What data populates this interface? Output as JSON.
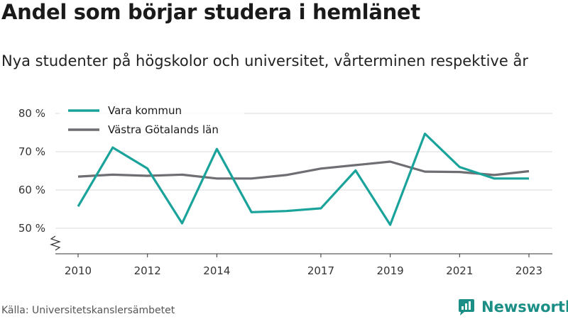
{
  "title": "Andel som börjar studera i hemlänet",
  "subtitle": "Nya studenter på högskolor och universitet, vårterminen respektive år",
  "source": "Källa: Universitetskanslersämbetet",
  "brand": {
    "name": "Newsworthy",
    "icon": "newsworthy-logo-icon",
    "color": "#1b8e86"
  },
  "chart_data": {
    "type": "line",
    "title": "Andel som börjar studera i hemlänet",
    "subtitle": "Nya studenter på högskolor och universitet, vårterminen respektive år",
    "x": [
      2010,
      2011,
      2012,
      2013,
      2014,
      2015,
      2016,
      2017,
      2018,
      2019,
      2020,
      2021,
      2022,
      2023
    ],
    "xticks": [
      2010,
      2012,
      2014,
      2017,
      2019,
      2021,
      2023
    ],
    "xtick_labels": [
      "2010",
      "2012",
      "2014",
      "2017",
      "2019",
      "2021",
      "2023"
    ],
    "yticks": [
      50,
      60,
      70,
      80
    ],
    "ytick_labels": [
      "50 %",
      "60 %",
      "70 %",
      "80 %"
    ],
    "ylim": [
      50,
      80
    ],
    "y_axis_break": true,
    "grid": "horizontal",
    "legend_position": "top-left",
    "series": [
      {
        "name": "Vara kommun",
        "color": "#1aa39a",
        "values": [
          55.7,
          71.1,
          65.6,
          51.3,
          70.7,
          54.2,
          54.5,
          55.2,
          65.1,
          50.9,
          74.7,
          66.0,
          63.0,
          63.0
        ]
      },
      {
        "name": "Västra Götalands län",
        "color": "#6e6e73",
        "values": [
          63.5,
          64.0,
          63.7,
          64.0,
          63.0,
          63.0,
          63.9,
          65.6,
          66.5,
          67.4,
          64.8,
          64.7,
          63.9,
          64.9
        ]
      }
    ]
  }
}
